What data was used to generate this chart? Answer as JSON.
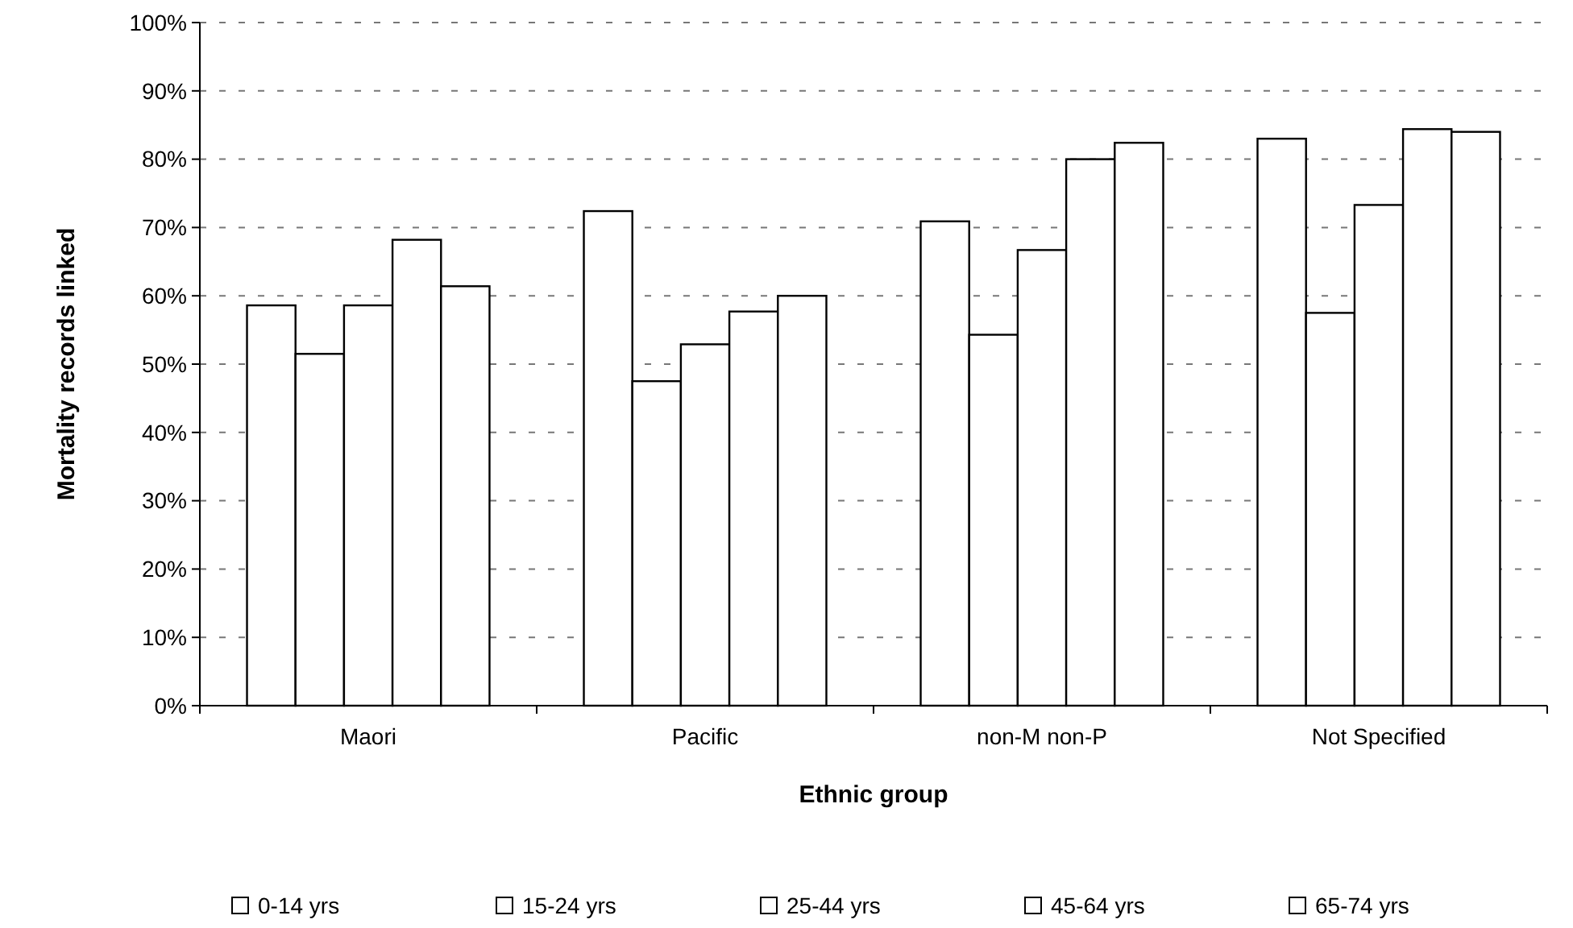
{
  "chart_data": {
    "type": "bar",
    "xlabel": "Ethnic group",
    "ylabel": "Mortality records linked",
    "categories": [
      "Maori",
      "Pacific",
      "non-M non-P",
      "Not Specified"
    ],
    "series": [
      {
        "name": "0-14 yrs",
        "color": "#ffffff",
        "values": [
          58.6,
          72.4,
          70.9,
          83.0
        ]
      },
      {
        "name": "15-24 yrs",
        "color": "#ffffff",
        "values": [
          51.5,
          47.5,
          54.3,
          57.5
        ]
      },
      {
        "name": "25-44 yrs",
        "color": "#ffffff",
        "values": [
          58.6,
          52.9,
          66.7,
          73.3
        ]
      },
      {
        "name": "45-64 yrs",
        "color": "#ffffff",
        "values": [
          68.2,
          57.7,
          80.0,
          84.4
        ]
      },
      {
        "name": "65-74 yrs",
        "color": "#ffffff",
        "values": [
          61.4,
          60.0,
          82.4,
          84.0
        ]
      }
    ],
    "ylim": [
      0,
      100
    ],
    "yticks": [
      {
        "value": 0,
        "label": "0%"
      },
      {
        "value": 10,
        "label": "10%"
      },
      {
        "value": 20,
        "label": "20%"
      },
      {
        "value": 30,
        "label": "30%"
      },
      {
        "value": 40,
        "label": "40%"
      },
      {
        "value": 50,
        "label": "50%"
      },
      {
        "value": 60,
        "label": "60%"
      },
      {
        "value": 70,
        "label": "70%"
      },
      {
        "value": 80,
        "label": "80%"
      },
      {
        "value": 90,
        "label": "90%"
      },
      {
        "value": 100,
        "label": "100%"
      }
    ],
    "grid": "y",
    "legend": "bottom"
  }
}
